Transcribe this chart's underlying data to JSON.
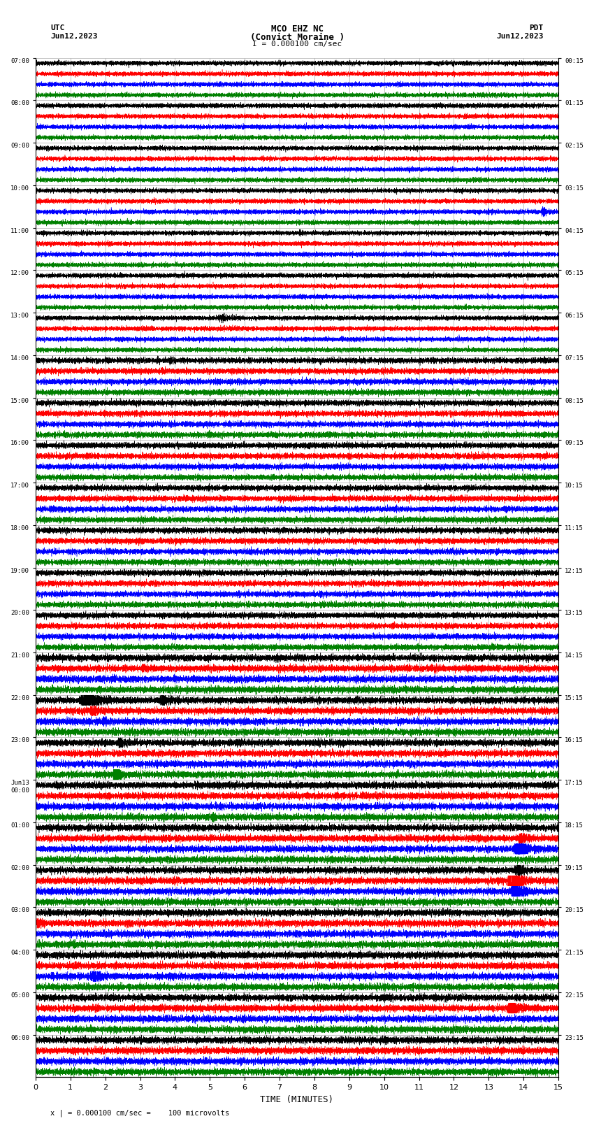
{
  "title_line1": "MCO EHZ NC",
  "title_line2": "(Convict Moraine )",
  "scale_label": "I = 0.000100 cm/sec",
  "left_label_line1": "UTC",
  "left_label_line2": "Jun12,2023",
  "right_label_line1": "PDT",
  "right_label_line2": "Jun12,2023",
  "xlabel": "TIME (MINUTES)",
  "footer_label": "x | = 0.000100 cm/sec =    100 microvolts",
  "utc_labels": [
    "07:00",
    "08:00",
    "09:00",
    "10:00",
    "11:00",
    "12:00",
    "13:00",
    "14:00",
    "15:00",
    "16:00",
    "17:00",
    "18:00",
    "19:00",
    "20:00",
    "21:00",
    "22:00",
    "23:00",
    "Jun13\n00:00",
    "01:00",
    "02:00",
    "03:00",
    "04:00",
    "05:00",
    "06:00"
  ],
  "pdt_labels": [
    "00:15",
    "01:15",
    "02:15",
    "03:15",
    "04:15",
    "05:15",
    "06:15",
    "07:15",
    "08:15",
    "09:15",
    "10:15",
    "11:15",
    "12:15",
    "13:15",
    "14:15",
    "15:15",
    "16:15",
    "17:15",
    "18:15",
    "19:15",
    "20:15",
    "21:15",
    "22:15",
    "23:15"
  ],
  "n_rows": 24,
  "n_traces_per_row": 4,
  "colors": [
    "black",
    "red",
    "blue",
    "green"
  ],
  "x_min": 0,
  "x_max": 15,
  "background_color": "white",
  "grid_color": "#aaaaaa",
  "seed": 12345
}
